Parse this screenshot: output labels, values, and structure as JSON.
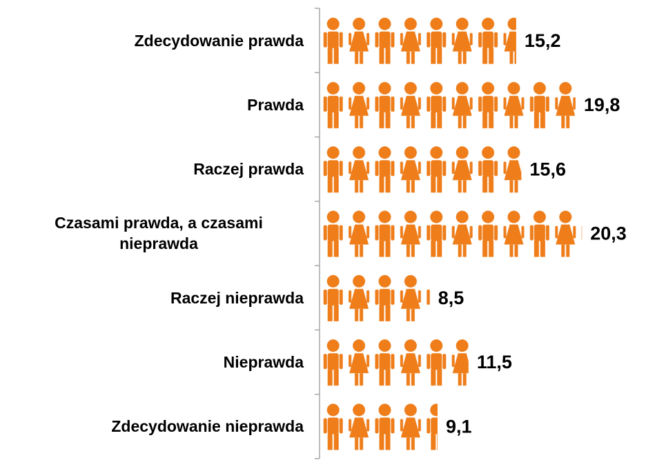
{
  "chart_data": {
    "type": "pictograph",
    "categories": [
      "Zdecydowanie prawda",
      "Prawda",
      "Raczej prawda",
      "Czasami prawda, a czasami nieprawda",
      "Raczej nieprawda",
      "Nieprawda",
      "Zdecydowanie nieprawda"
    ],
    "values": [
      15.2,
      19.8,
      15.6,
      20.3,
      8.5,
      11.5,
      9.1
    ],
    "value_labels": [
      "15,2",
      "19,8",
      "15,6",
      "20,3",
      "8,5",
      "11,5",
      "9,1"
    ],
    "color": "#ee7d1a",
    "xlim": [
      0,
      25
    ]
  }
}
